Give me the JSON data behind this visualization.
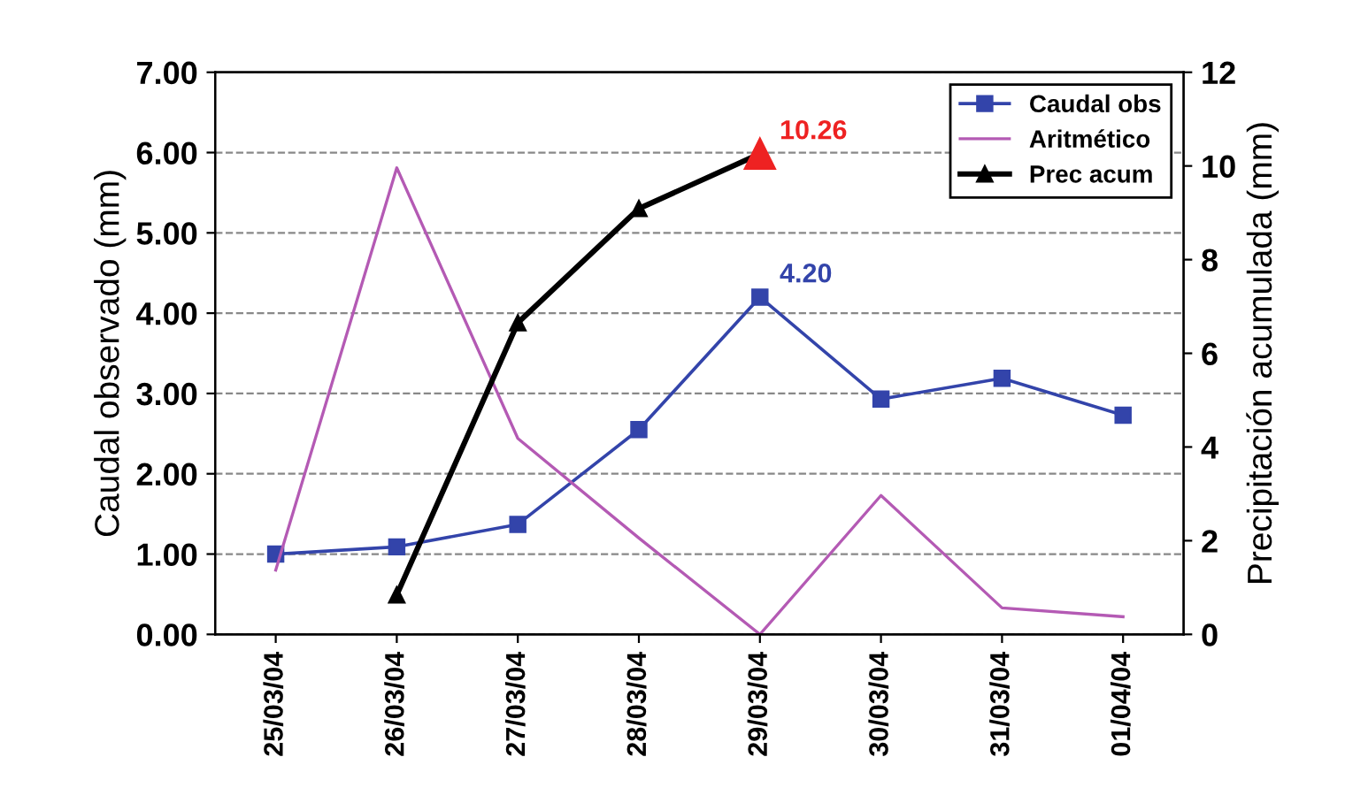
{
  "chart_data": {
    "type": "line",
    "ylabel": "Caudal observado (mm)",
    "y2label": "Precipitación acumulada (mm)",
    "categories": [
      "25/03/04",
      "26/03/04",
      "27/03/04",
      "28/03/04",
      "29/03/04",
      "30/03/04",
      "31/03/04",
      "01/04/04"
    ],
    "series": [
      {
        "name": "Caudal obs",
        "color": "#3344aa",
        "marker": "square",
        "values": [
          1.0,
          1.09,
          1.37,
          2.55,
          4.2,
          2.93,
          3.19,
          2.73
        ],
        "value_labels": [
          null,
          null,
          null,
          null,
          "4.20",
          null,
          null,
          null
        ]
      },
      {
        "name": "Aritmético",
        "color": "#b45ab4",
        "marker": "none",
        "values": [
          0.8,
          5.81,
          2.44,
          1.2,
          0.0,
          1.73,
          0.33,
          0.22
        ]
      },
      {
        "name": "Prec acum",
        "color": "#000000",
        "marker": "triangle",
        "axis": "y2",
        "values": [
          null,
          0.84,
          6.65,
          9.09,
          10.26,
          null,
          null,
          null
        ],
        "colors": [
          null,
          "#000000",
          "#000000",
          "#000000",
          "#ee2222",
          null,
          null,
          null
        ],
        "value_labels": [
          null,
          null,
          null,
          null,
          "10.26",
          null,
          null,
          null
        ]
      }
    ],
    "ylim": [
      0,
      7
    ],
    "yticks": [
      {
        "value": 0,
        "label": "0.00"
      },
      {
        "value": 1,
        "label": "1.00"
      },
      {
        "value": 2,
        "label": "2.00"
      },
      {
        "value": 3,
        "label": "3.00"
      },
      {
        "value": 4,
        "label": "4.00"
      },
      {
        "value": 5,
        "label": "5.00"
      },
      {
        "value": 6,
        "label": "6.00"
      },
      {
        "value": 7,
        "label": "7.00"
      }
    ],
    "y2lim": [
      0,
      12
    ],
    "y2ticks": [
      0,
      2,
      4,
      6,
      8,
      10,
      12
    ],
    "grid": "y",
    "legend": "top right",
    "line_style": "solid"
  }
}
